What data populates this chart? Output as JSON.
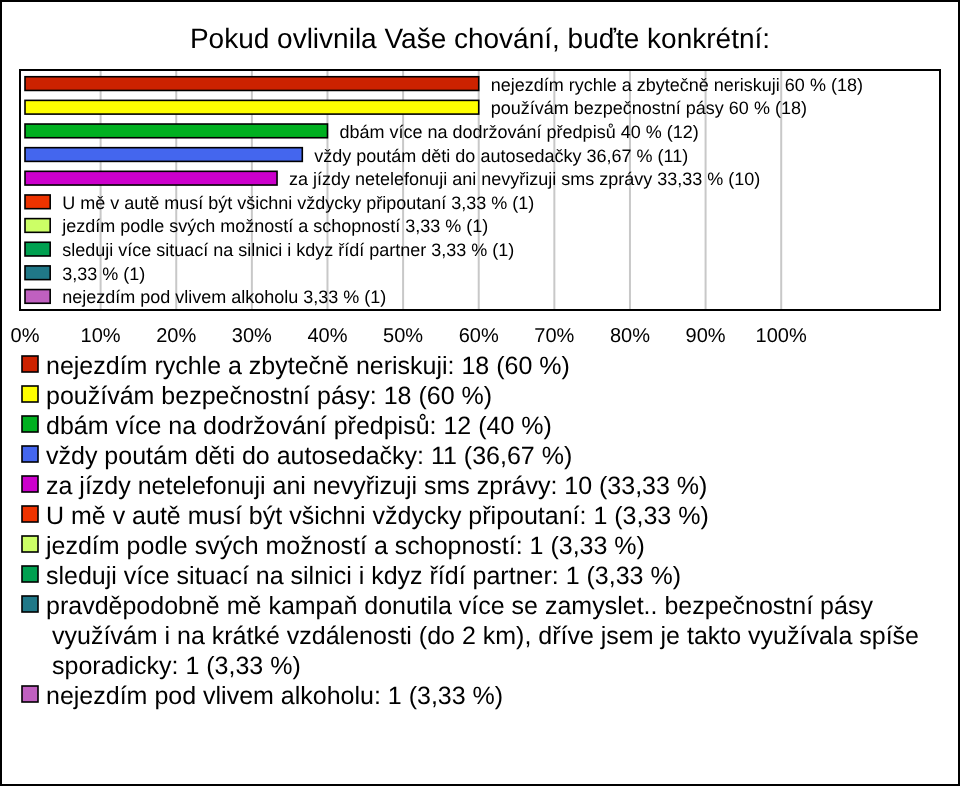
{
  "chart_data": {
    "type": "bar",
    "orientation": "horizontal",
    "stacked": true,
    "title": "Pokud ovlivnila Vaše chování, buďte konkrétní:",
    "categories": [
      null,
      null,
      null,
      null,
      null,
      null,
      null,
      null,
      null,
      null
    ],
    "series": [
      {
        "name": "nejezdím rychle a zbytečně neriskuji: 18 (60 %)",
        "color": "#cc2200",
        "values": [
          60,
          null,
          null,
          null,
          null,
          null,
          null,
          null,
          null,
          null
        ],
        "value_labels": [
          "nejezdím rychle a zbytečně neriskuji 60 % (18)",
          null,
          null,
          null,
          null,
          null,
          null,
          null,
          null,
          null
        ]
      },
      {
        "name": "používám bezpečnostní pásy: 18 (60 %)",
        "color": "#ffff00",
        "values": [
          null,
          60,
          null,
          null,
          null,
          null,
          null,
          null,
          null,
          null
        ],
        "value_labels": [
          null,
          "používám bezpečnostní pásy 60 % (18)",
          null,
          null,
          null,
          null,
          null,
          null,
          null,
          null
        ]
      },
      {
        "name": "dbám více na dodržování předpisů: 12 (40 %)",
        "color": "#00b020",
        "values": [
          null,
          null,
          40,
          null,
          null,
          null,
          null,
          null,
          null,
          null
        ],
        "value_labels": [
          null,
          null,
          "dbám více na dodržování předpisů 40 % (12)",
          null,
          null,
          null,
          null,
          null,
          null,
          null
        ]
      },
      {
        "name": "vždy poutám děti do autosedačky: 11 (36,67 %)",
        "color": "#4466ee",
        "values": [
          null,
          null,
          null,
          36.67,
          null,
          null,
          null,
          null,
          null,
          null
        ],
        "value_labels": [
          null,
          null,
          null,
          "vždy poutám děti do autosedačky 36,67 % (11)",
          null,
          null,
          null,
          null,
          null,
          null
        ]
      },
      {
        "name": "za jízdy netelefonuji ani nevyřizuji sms zprávy: 10 (33,33 %)",
        "color": "#cc00cc",
        "values": [
          null,
          null,
          null,
          null,
          33.33,
          null,
          null,
          null,
          null,
          null
        ],
        "value_labels": [
          null,
          null,
          null,
          null,
          "za jízdy netelefonuji ani nevyřizuji sms zprávy 33,33 % (10)",
          null,
          null,
          null,
          null,
          null
        ]
      },
      {
        "name": "U mě v autě musí být všichni vždycky připoutaní: 1 (3,33 %)",
        "color": "#ee3300",
        "values": [
          null,
          null,
          null,
          null,
          null,
          3.33,
          null,
          null,
          null,
          null
        ],
        "value_labels": [
          null,
          null,
          null,
          null,
          null,
          "U mě v autě musí být všichni vždycky připoutaní 3,33 % (1)",
          null,
          null,
          null,
          null
        ]
      },
      {
        "name": "jezdím podle svých možností a schopností: 1 (3,33 %)",
        "color": "#ccff66",
        "values": [
          null,
          null,
          null,
          null,
          null,
          null,
          3.33,
          null,
          null,
          null
        ],
        "value_labels": [
          null,
          null,
          null,
          null,
          null,
          null,
          "jezdím podle svých možností a schopností 3,33 % (1)",
          null,
          null,
          null
        ]
      },
      {
        "name": "sleduji více situací na silnici i kdyz řídí partner: 1 (3,33 %)",
        "color": "#00a050",
        "values": [
          null,
          null,
          null,
          null,
          null,
          null,
          null,
          3.33,
          null,
          null
        ],
        "value_labels": [
          null,
          null,
          null,
          null,
          null,
          null,
          null,
          "sleduji více situací na silnici i kdyz řídí partner 3,33 % (1)",
          null,
          null
        ]
      },
      {
        "name": "pravděpodobně mě kampaň donutila více se zamyslet.. bezpečnostní pásy využívám i na krátké vzdálenosti (do 2 km), dříve jsem je takto využívala spíše sporadicky: 1 (3,33 %)",
        "color": "#207888",
        "values": [
          null,
          null,
          null,
          null,
          null,
          null,
          null,
          null,
          3.33,
          null
        ],
        "value_labels": [
          null,
          null,
          null,
          null,
          null,
          null,
          null,
          null,
          "3,33 % (1)",
          null
        ]
      },
      {
        "name": "nejezdím pod vlivem alkoholu: 1 (3,33 %)",
        "color": "#c060c0",
        "values": [
          null,
          null,
          null,
          null,
          null,
          null,
          null,
          null,
          null,
          3.33
        ],
        "value_labels": [
          null,
          null,
          null,
          null,
          null,
          null,
          null,
          null,
          null,
          "nejezdím pod vlivem alkoholu 3,33 % (1)"
        ]
      }
    ],
    "xlim": [
      0,
      121
    ],
    "xticks": [
      {
        "value": 0,
        "label": "0%"
      },
      {
        "value": 10,
        "label": "10%"
      },
      {
        "value": 20,
        "label": "20%"
      },
      {
        "value": 30,
        "label": "30%"
      },
      {
        "value": 40,
        "label": "40%"
      },
      {
        "value": 50,
        "label": "50%"
      },
      {
        "value": 60,
        "label": "60%"
      },
      {
        "value": 70,
        "label": "70%"
      },
      {
        "value": 80,
        "label": "80%"
      },
      {
        "value": 90,
        "label": "90%"
      },
      {
        "value": 100,
        "label": "100%"
      }
    ],
    "grid": "x",
    "legend": "bottom",
    "tick_labels": "x"
  }
}
